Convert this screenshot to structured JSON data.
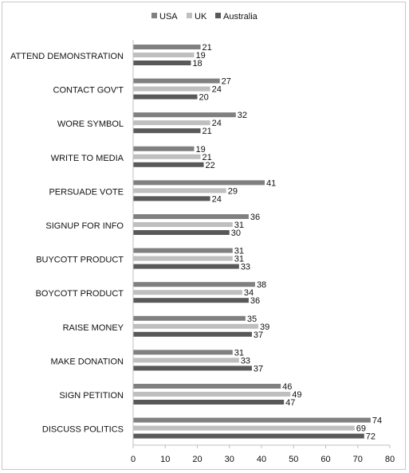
{
  "chart_data": {
    "type": "bar",
    "orientation": "horizontal",
    "categories": [
      "ATTEND DEMONSTRATION",
      "CONTACT GOV'T",
      "WORE SYMBOL",
      "WRITE TO MEDIA",
      "PERSUADE VOTE",
      "SIGNUP FOR INFO",
      "BUYCOTT PRODUCT",
      "BOYCOTT PRODUCT",
      "RAISE MONEY",
      "MAKE DONATION",
      "SIGN PETITION",
      "DISCUSS POLITICS"
    ],
    "series": [
      {
        "name": "USA",
        "color": "#808080",
        "values": [
          21,
          27,
          32,
          19,
          41,
          36,
          31,
          38,
          35,
          31,
          46,
          74
        ]
      },
      {
        "name": "UK",
        "color": "#bfbfbf",
        "values": [
          19,
          24,
          24,
          21,
          29,
          31,
          31,
          34,
          39,
          33,
          49,
          69
        ]
      },
      {
        "name": "Australia",
        "color": "#595959",
        "values": [
          18,
          20,
          21,
          22,
          24,
          30,
          33,
          36,
          37,
          37,
          47,
          72
        ]
      }
    ],
    "xlim": [
      0,
      80
    ],
    "xticks": [
      0,
      10,
      20,
      30,
      40,
      50,
      60,
      70,
      80
    ],
    "legend_position": "top",
    "grid": false
  }
}
